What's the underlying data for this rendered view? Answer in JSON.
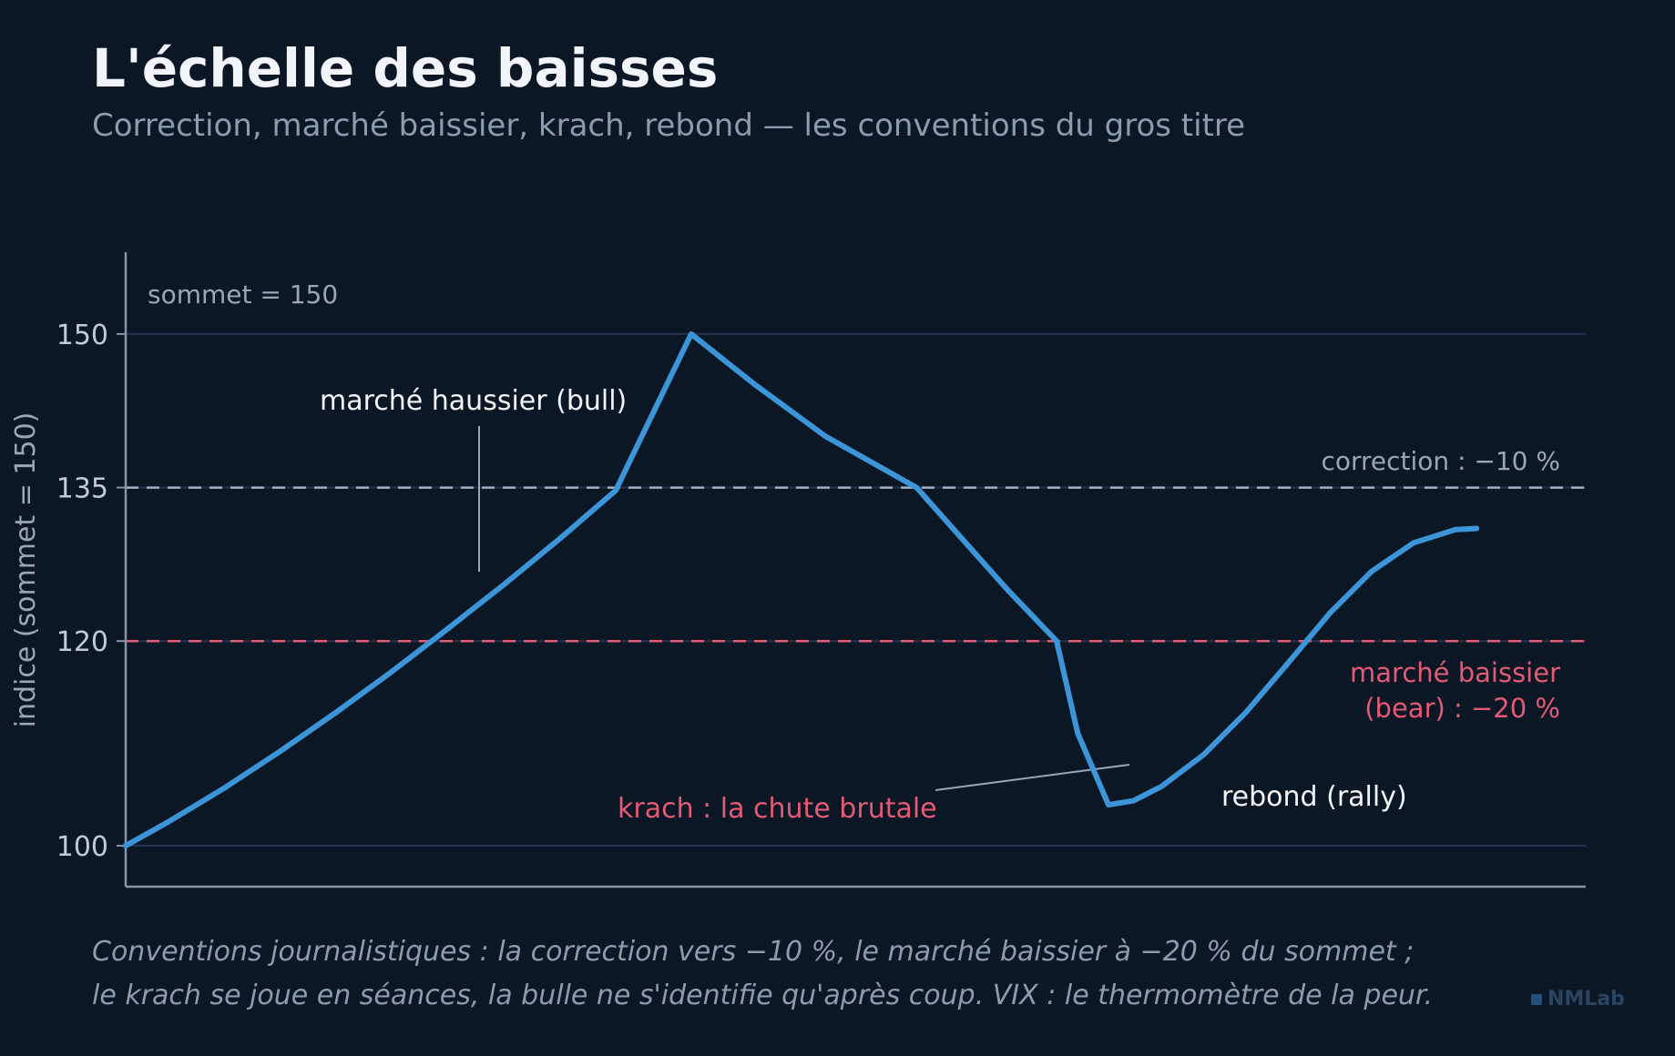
{
  "header": {
    "title": "L'échelle des baisses",
    "subtitle": "Correction, marché baissier, krach, rebond — les conventions du gros titre"
  },
  "footer": {
    "line1": "Conventions journalistiques : la correction vers −10 %, le marché baissier à −20 % du sommet ;",
    "line2": "le krach se joue en séances, la bulle ne s'identifie qu'après coup. VIX : le thermomètre de la peur."
  },
  "brand": {
    "label": "NMLab"
  },
  "chart_data": {
    "type": "line",
    "ylabel": "indice (sommet = 150)",
    "xlabel": "",
    "ylim": [
      96,
      158
    ],
    "xlim": [
      0,
      100
    ],
    "yticks": [
      100,
      120,
      135,
      150
    ],
    "grid": true,
    "series": [
      {
        "color": "#3b95d8",
        "x": [
          0,
          3,
          7,
          11,
          15,
          19,
          23,
          27,
          31,
          35,
          40.4,
          45,
          50,
          56.5,
          60,
          63,
          66.5,
          68,
          70.2,
          72,
          74,
          77,
          80,
          83,
          86,
          89,
          92,
          95,
          96.5
        ],
        "y": [
          100,
          102.3,
          105.6,
          109.2,
          113.0,
          117.0,
          121.2,
          125.5,
          130.0,
          134.7,
          150,
          145.0,
          140.0,
          135,
          129.6,
          125.0,
          120,
          111,
          104.0,
          104.4,
          105.8,
          108.9,
          113.0,
          117.8,
          122.7,
          126.8,
          129.6,
          130.9,
          131.0
        ]
      }
    ],
    "thresholds": [
      {
        "value": 135,
        "color": "#a3b1c8",
        "label": "correction : −10 %"
      },
      {
        "value": 120,
        "color": "#e35a75",
        "label_lines": [
          "marché baissier",
          "(bear) : −20 %"
        ]
      }
    ],
    "annotations": {
      "peak": "sommet = 150",
      "bull": "marché haussier (bull)",
      "krach": "krach : la chute brutale",
      "rally": "rebond (rally)"
    },
    "colors": {
      "axis": "#8793a6",
      "grid": "#24344c",
      "tick_text": "#c3cad6",
      "muted_text": "#9aa6b8",
      "label_text": "#f2f5f9",
      "bear_text": "#e35a75"
    }
  }
}
